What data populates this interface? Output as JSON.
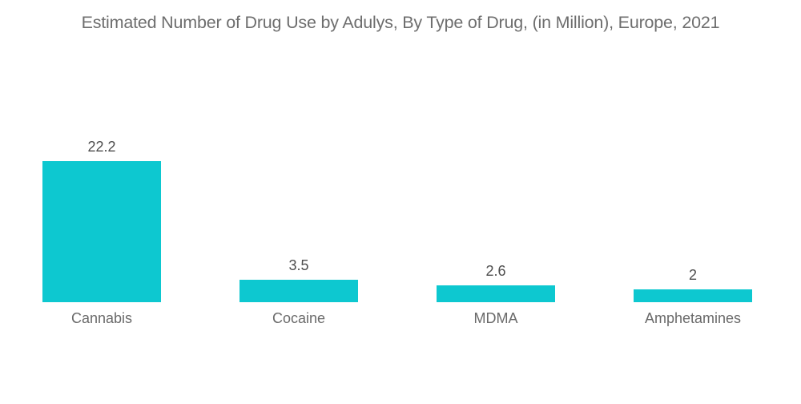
{
  "page": {
    "background": "#ffffff"
  },
  "title": "Estimated Number of Drug Use by Adulys, By Type of Drug, (in Million), Europe, 2021",
  "colors": {
    "bar": "#0dc8d0",
    "title_text": "#6e6e6e",
    "value_text": "#4d4d4d",
    "category_text": "#6a6a6a"
  },
  "chart_data": {
    "type": "bar",
    "title": "Estimated Number of Drug Use by Adulys, By Type of Drug, (in Million), Europe, 2021",
    "categories": [
      "Cannabis",
      "Cocaine",
      "MDMA",
      "Amphetamines"
    ],
    "values": [
      22.2,
      3.5,
      2.6,
      2
    ],
    "value_labels": [
      "22.2",
      "3.5",
      "2.6",
      "2"
    ],
    "xlabel": "",
    "ylabel": "",
    "ylim": [
      0,
      24
    ],
    "grid": false,
    "legend": false,
    "axes_visible": false,
    "bar_color": "#0dc8d0",
    "orientation": "vertical",
    "unit": "Million"
  }
}
